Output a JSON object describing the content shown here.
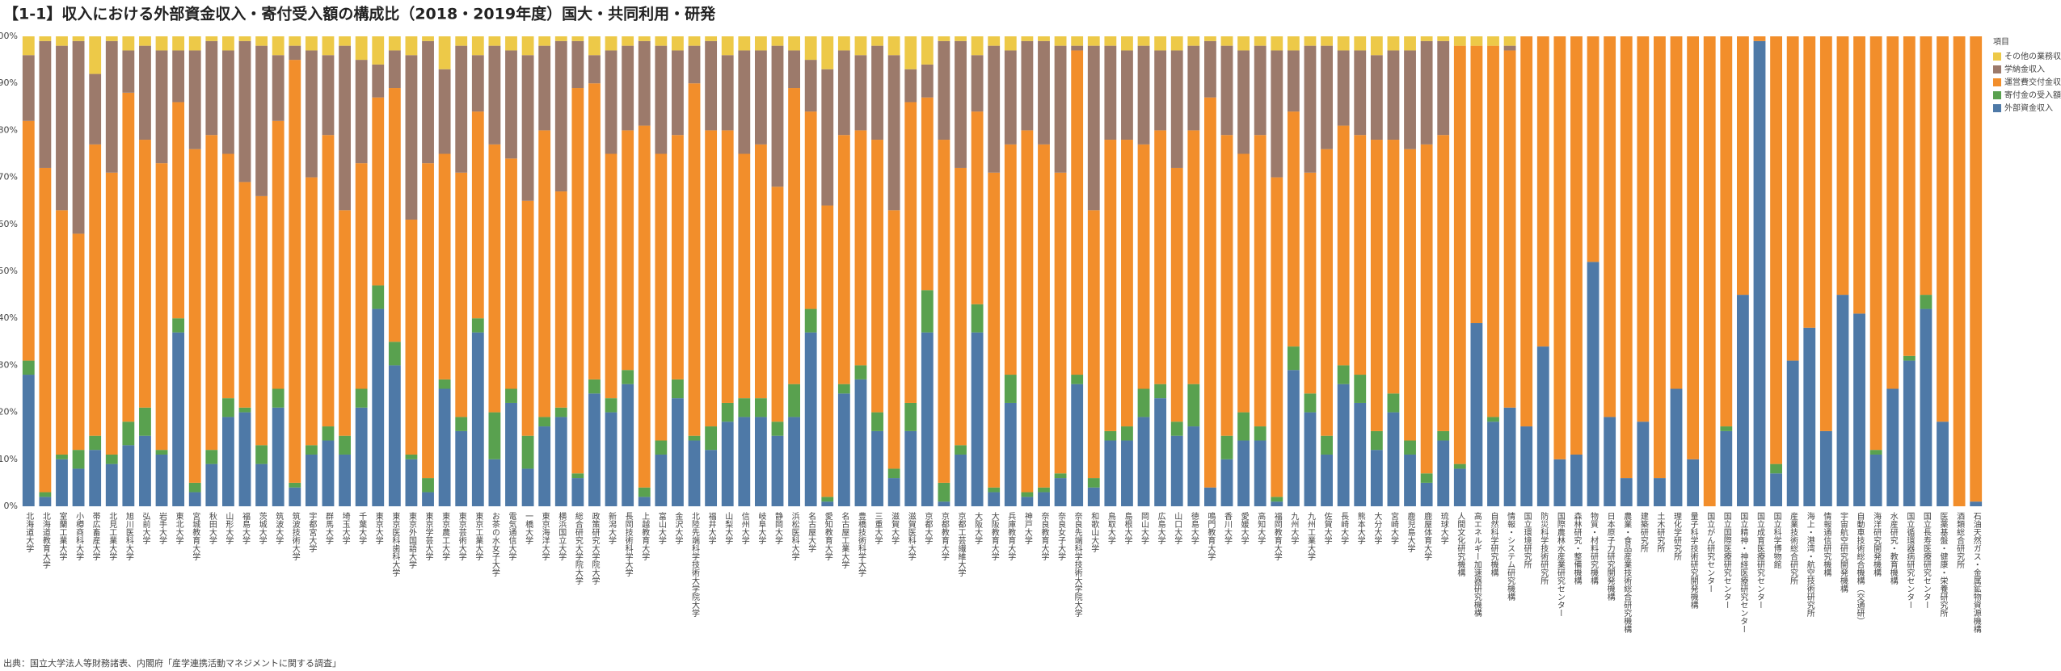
{
  "chart_data": {
    "type": "stacked_bar",
    "title": "【1-1】収入における外部資金収入・寄付受入額の構成比（2018・2019年度）国大・共同利用・研発",
    "source": "出典：国立大学法人等財務諸表、内閣府「産学連携活動マネジメントに関する調査」",
    "legend_title": "項目",
    "legend": "right",
    "categories": [
      "北海道大学",
      "北海道教育大学",
      "室蘭工業大学",
      "小樽商科大学",
      "帯広畜産大学",
      "北見工業大学",
      "旭川医科大学",
      "弘前大学",
      "岩手大学",
      "東北大学",
      "宮城教育大学",
      "秋田大学",
      "山形大学",
      "福島大学",
      "茨城大学",
      "筑波大学",
      "筑波技術大学",
      "宇都宮大学",
      "群馬大学",
      "埼玉大学",
      "千葉大学",
      "東京大学",
      "東京医科歯科大学",
      "東京外国語大学",
      "東京学芸大学",
      "東京農工大学",
      "東京芸術大学",
      "東京工業大学",
      "お茶の水女子大学",
      "電気通信大学",
      "一橋大学",
      "東京海洋大学",
      "横浜国立大学",
      "総合研究大学院大学",
      "政策研究大学院大学",
      "新潟大学",
      "長岡技術科学大学",
      "上越教育大学",
      "富山大学",
      "金沢大学",
      "北陸先端科学技術大学院大学",
      "福井大学",
      "山梨大学",
      "信州大学",
      "岐阜大学",
      "静岡大学",
      "浜松医科大学",
      "名古屋大学",
      "愛知教育大学",
      "名古屋工業大学",
      "豊橋技術科学大学",
      "三重大学",
      "滋賀大学",
      "滋賀医科大学",
      "京都大学",
      "京都教育大学",
      "京都工芸繊維大学",
      "大阪大学",
      "大阪教育大学",
      "兵庫教育大学",
      "神戸大学",
      "奈良教育大学",
      "奈良女子大学",
      "奈良先端科学技術大学院大学",
      "和歌山大学",
      "鳥取大学",
      "島根大学",
      "岡山大学",
      "広島大学",
      "山口大学",
      "徳島大学",
      "鳴門教育大学",
      "香川大学",
      "愛媛大学",
      "高知大学",
      "福岡教育大学",
      "九州大学",
      "九州工業大学",
      "佐賀大学",
      "長崎大学",
      "熊本大学",
      "大分大学",
      "宮崎大学",
      "鹿児島大学",
      "鹿屋体育大学",
      "琉球大学",
      "人間文化研究機構",
      "高エネルギー加速器研究機構",
      "自然科学研究機構",
      "情報・システム研究機構",
      "国立環境研究所",
      "防災科学技術研究所",
      "国際農林水産業研究センター",
      "森林研究・整備機構",
      "物質・材料研究機構",
      "日本原子力研究開発機構",
      "農業・食品産業技術総合研究機構",
      "建築研究所",
      "土木研究所",
      "理化学研究所",
      "量子科学技術研究開発機構",
      "国立がん研究センター",
      "国立国際医療研究センター",
      "国立精神・神経医療研究センター",
      "国立成育医療研究センター",
      "国立科学博物館",
      "産業技術総合研究所",
      "海上・港湾・航空技術研究所",
      "情報通信研究機構",
      "宇宙航空研究開発機構",
      "自動車技術総合機構（交通研）",
      "海洋研究開発機構",
      "水産研究・教育機構",
      "国立循環器病研究センター",
      "国立長寿医療研究センター",
      "医薬基盤・健康・栄養研究所",
      "酒類総合研究所",
      "石油天然ガス・金属鉱物資源機構"
    ],
    "series": [
      {
        "name": "外部資金収入",
        "color": "#4e79a7",
        "values": [
          28,
          2,
          10,
          8,
          12,
          9,
          13,
          15,
          11,
          37,
          3,
          9,
          19,
          20,
          9,
          21,
          4,
          11,
          14,
          11,
          21,
          42,
          30,
          10,
          3,
          25,
          16,
          37,
          10,
          22,
          8,
          17,
          19,
          6,
          24,
          20,
          26,
          2,
          11,
          23,
          14,
          12,
          18,
          19,
          19,
          15,
          19,
          37,
          1,
          24,
          27,
          16,
          6,
          16,
          37,
          1,
          11,
          37,
          3,
          22,
          2,
          3,
          6,
          26,
          4,
          14,
          14,
          19,
          23,
          15,
          17,
          4,
          10,
          14,
          14,
          1,
          29,
          20,
          11,
          26,
          22,
          12,
          20,
          11,
          5,
          14,
          8,
          39,
          18,
          21,
          17,
          34,
          10,
          11,
          52,
          19,
          6,
          18,
          6,
          25,
          10,
          0,
          16,
          45,
          99,
          7,
          31,
          38,
          16,
          45,
          41,
          11,
          25,
          31,
          42,
          18,
          0,
          1
        ]
      },
      {
        "name": "寄付金の受入額",
        "color": "#59a14f",
        "values": [
          3,
          1,
          1,
          4,
          3,
          2,
          5,
          6,
          1,
          3,
          2,
          3,
          4,
          1,
          4,
          4,
          1,
          2,
          3,
          4,
          4,
          5,
          5,
          1,
          3,
          2,
          3,
          3,
          10,
          3,
          7,
          2,
          2,
          1,
          3,
          3,
          3,
          2,
          3,
          4,
          1,
          5,
          4,
          4,
          4,
          3,
          7,
          5,
          1,
          2,
          3,
          4,
          2,
          6,
          9,
          4,
          2,
          6,
          1,
          6,
          1,
          1,
          1,
          2,
          2,
          2,
          3,
          6,
          3,
          3,
          9,
          0,
          5,
          6,
          3,
          1,
          5,
          4,
          4,
          4,
          6,
          4,
          4,
          3,
          2,
          2,
          1,
          0,
          1,
          0,
          0,
          0,
          0,
          0,
          0,
          0,
          0,
          0,
          0,
          0,
          0,
          0,
          1,
          0,
          0,
          2,
          0,
          0,
          0,
          0,
          0,
          1,
          0,
          1,
          3,
          0,
          0,
          0
        ]
      },
      {
        "name": "運営費交付金収入",
        "color": "#f28e2b",
        "values": [
          51,
          69,
          52,
          46,
          62,
          60,
          70,
          57,
          61,
          46,
          71,
          67,
          52,
          48,
          53,
          57,
          90,
          57,
          62,
          48,
          48,
          40,
          54,
          50,
          67,
          48,
          52,
          44,
          57,
          49,
          50,
          61,
          46,
          82,
          63,
          52,
          51,
          77,
          61,
          52,
          75,
          63,
          58,
          52,
          54,
          50,
          63,
          42,
          62,
          53,
          50,
          58,
          55,
          64,
          41,
          73,
          59,
          41,
          67,
          49,
          77,
          73,
          64,
          69,
          57,
          62,
          61,
          52,
          54,
          54,
          54,
          83,
          64,
          55,
          62,
          68,
          50,
          47,
          61,
          51,
          51,
          62,
          54,
          62,
          70,
          63,
          89,
          59,
          79,
          76,
          83,
          66,
          90,
          89,
          48,
          81,
          94,
          82,
          94,
          75,
          90,
          100,
          83,
          55,
          1,
          91,
          69,
          62,
          84,
          55,
          59,
          88,
          75,
          68,
          55,
          82,
          100,
          99
        ]
      },
      {
        "name": "学納金収入",
        "color": "#9c7a6b",
        "values": [
          14,
          27,
          35,
          41,
          15,
          28,
          9,
          20,
          24,
          11,
          21,
          20,
          22,
          30,
          32,
          14,
          3,
          27,
          17,
          35,
          22,
          7,
          8,
          35,
          26,
          18,
          27,
          12,
          21,
          23,
          31,
          18,
          32,
          10,
          6,
          22,
          18,
          18,
          23,
          18,
          8,
          19,
          16,
          22,
          20,
          30,
          8,
          11,
          29,
          18,
          16,
          20,
          33,
          7,
          7,
          21,
          27,
          12,
          27,
          20,
          19,
          22,
          27,
          1,
          35,
          20,
          19,
          21,
          17,
          25,
          18,
          12,
          19,
          22,
          19,
          27,
          13,
          27,
          22,
          16,
          18,
          18,
          19,
          21,
          22,
          20,
          0,
          0,
          0,
          1,
          0,
          0,
          0,
          0,
          0,
          0,
          0,
          0,
          0,
          0,
          0,
          0,
          0,
          0,
          0,
          0,
          0,
          0,
          0,
          0,
          0,
          0,
          0,
          0,
          0,
          0,
          0,
          0
        ]
      },
      {
        "name": "その他の業務収入",
        "color": "#edc948",
        "values": [
          4,
          1,
          2,
          1,
          8,
          1,
          3,
          2,
          3,
          3,
          3,
          1,
          3,
          1,
          2,
          4,
          2,
          3,
          4,
          2,
          5,
          6,
          3,
          4,
          1,
          7,
          2,
          4,
          2,
          3,
          4,
          2,
          1,
          1,
          4,
          3,
          2,
          1,
          2,
          3,
          2,
          1,
          4,
          3,
          3,
          2,
          3,
          5,
          7,
          3,
          4,
          2,
          4,
          7,
          6,
          1,
          1,
          4,
          2,
          3,
          1,
          1,
          2,
          2,
          2,
          2,
          3,
          2,
          3,
          3,
          2,
          1,
          2,
          3,
          2,
          3,
          3,
          2,
          2,
          3,
          3,
          4,
          3,
          3,
          1,
          1,
          2,
          2,
          2,
          2,
          0,
          0,
          0,
          0,
          0,
          0,
          0,
          0,
          0,
          0,
          0,
          0,
          0,
          0,
          0,
          0,
          0,
          0,
          0,
          0,
          0,
          0,
          0,
          0,
          0,
          0,
          0,
          0
        ]
      }
    ],
    "ylim": [
      0,
      100
    ],
    "yticks": [
      {
        "value": 0,
        "label": "0%"
      },
      {
        "value": 10,
        "label": "10%"
      },
      {
        "value": 20,
        "label": "20%"
      },
      {
        "value": 30,
        "label": "30%"
      },
      {
        "value": 40,
        "label": "40%"
      },
      {
        "value": 50,
        "label": "50%"
      },
      {
        "value": 60,
        "label": "60%"
      },
      {
        "value": 70,
        "label": "70%"
      },
      {
        "value": 80,
        "label": "80%"
      },
      {
        "value": 90,
        "label": "90%"
      },
      {
        "value": 100,
        "label": "100%"
      }
    ]
  }
}
